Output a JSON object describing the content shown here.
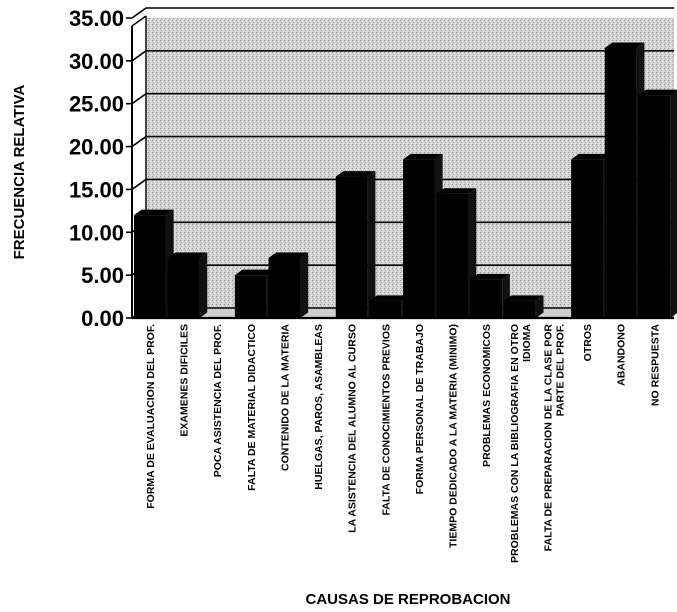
{
  "chart_data": {
    "type": "bar",
    "title": "",
    "xlabel": "CAUSAS DE REPROBACION",
    "ylabel": "FRECUENCIA RELATIVA",
    "ylim": [
      0,
      35
    ],
    "yticks": [
      "35.00",
      "30.00",
      "25.00",
      "20.00",
      "15.00",
      "10.00",
      "5.00",
      "0.00"
    ],
    "grid": true,
    "legend": "none",
    "style": "3d",
    "colors": {
      "bar": "#000000",
      "background": "#d4d4d4"
    },
    "categories": [
      "FORMA DE EVALUACION DEL PROF.",
      "EXAMENES DIFICILES",
      "POCA ASISTENCIA DEL PROF.",
      "FALTA DE MATERIAL DIDACTICO",
      "CONTENIDO DE LA MATERIA",
      "HUELGAS, PAROS, ASAMBLEAS",
      "LA ASISTENCIA DEL ALUMNO AL CURSO",
      "FALTA DE CONOCIMIENTOS PREVIOS",
      "FORMA PERSONAL DE TRABAJO",
      "TIEMPO DEDICADO A LA MATERIA (MINIMO)",
      "PROBLEMAS ECONOMICOS",
      "PROBLEMAS CON LA BIBLIOGRAFIA EN OTRO IDIOMA",
      "FALTA DE PREPARACION DE LA CLASE POR PARTE DEL PROF.",
      "OTROS",
      "ABANDONO",
      "NO RESPUESTA"
    ],
    "values": [
      12.0,
      7.0,
      0.0,
      5.0,
      7.0,
      0.0,
      16.5,
      2.0,
      18.5,
      14.5,
      4.5,
      2.0,
      0.0,
      18.5,
      31.5,
      26.0
    ]
  }
}
